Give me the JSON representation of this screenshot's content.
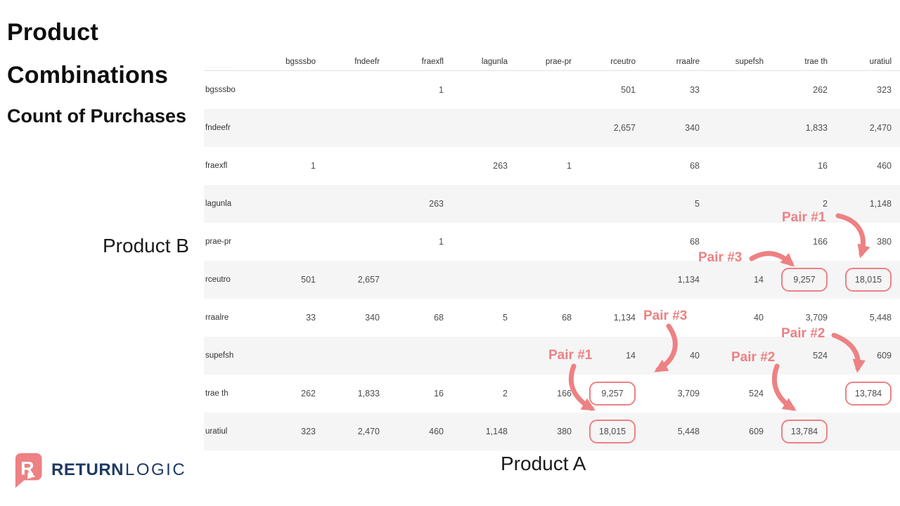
{
  "title": {
    "line1": "Product",
    "line2": "Combinations",
    "subtitle": "Count of Purchases"
  },
  "axes": {
    "row_axis_label": "Product B",
    "col_axis_label": "Product A"
  },
  "matrix": {
    "corner_placeholder": "..........",
    "columns": [
      "bgsssbo",
      "fndeefr",
      "fraexfl",
      "lagunla",
      "prae-pr",
      "rceutro",
      "rraalre",
      "supefsh",
      "trae th",
      "uratiul"
    ],
    "rows": [
      {
        "label": "bgsssbo",
        "values": [
          "",
          "",
          "1",
          "",
          "",
          "501",
          "33",
          "",
          "262",
          "323"
        ]
      },
      {
        "label": "fndeefr",
        "values": [
          "",
          "",
          "",
          "",
          "",
          "2,657",
          "340",
          "",
          "1,833",
          "2,470"
        ]
      },
      {
        "label": "fraexfl",
        "values": [
          "1",
          "",
          "",
          "263",
          "1",
          "",
          "68",
          "",
          "16",
          "460"
        ]
      },
      {
        "label": "lagunla",
        "values": [
          "",
          "",
          "263",
          "",
          "",
          "",
          "5",
          "",
          "2",
          "1,148"
        ]
      },
      {
        "label": "prae-pr",
        "values": [
          "",
          "",
          "1",
          "",
          "",
          "",
          "68",
          "",
          "166",
          "380"
        ]
      },
      {
        "label": "rceutro",
        "values": [
          "501",
          "2,657",
          "",
          "",
          "",
          "",
          "1,134",
          "14",
          "9,257",
          "18,015"
        ]
      },
      {
        "label": "rraalre",
        "values": [
          "33",
          "340",
          "68",
          "5",
          "68",
          "1,134",
          "",
          "40",
          "3,709",
          "5,448"
        ]
      },
      {
        "label": "supefsh",
        "values": [
          "",
          "",
          "",
          "",
          "",
          "14",
          "40",
          "",
          "524",
          "609"
        ]
      },
      {
        "label": "trae th",
        "values": [
          "262",
          "1,833",
          "16",
          "2",
          "166",
          "9,257",
          "3,709",
          "524",
          "",
          "13,784"
        ]
      },
      {
        "label": "uratiul",
        "values": [
          "323",
          "2,470",
          "460",
          "1,148",
          "380",
          "18,015",
          "5,448",
          "609",
          "13,784",
          ""
        ]
      }
    ]
  },
  "highlights": {
    "color": "#ED8183",
    "circled_cells": [
      {
        "row": "rceutro",
        "col": "trae th"
      },
      {
        "row": "rceutro",
        "col": "uratiul"
      },
      {
        "row": "trae th",
        "col": "rceutro"
      },
      {
        "row": "trae th",
        "col": "uratiul"
      },
      {
        "row": "uratiul",
        "col": "rceutro"
      },
      {
        "row": "uratiul",
        "col": "trae th"
      }
    ],
    "annotations": [
      {
        "id": "pair1-top",
        "label": "Pair #1"
      },
      {
        "id": "pair3-top",
        "label": "Pair #3"
      },
      {
        "id": "pair3-mid",
        "label": "Pair #3"
      },
      {
        "id": "pair1-mid",
        "label": "Pair #1"
      },
      {
        "id": "pair2-right",
        "label": "Pair #2"
      },
      {
        "id": "pair2-mid",
        "label": "Pair #2"
      }
    ]
  },
  "logo": {
    "brand_bold": "RETURN",
    "brand_light": "LOGIC",
    "icon_letter": "R",
    "icon_color": "#ED8183",
    "text_color": "#1F3A63"
  },
  "chart_data": {
    "type": "heatmap",
    "title": "Product Combinations",
    "subtitle": "Count of Purchases",
    "xlabel": "Product A",
    "ylabel": "Product B",
    "categories": [
      "bgsssbo",
      "fndeefr",
      "fraexfl",
      "lagunla",
      "prae-pr",
      "rceutro",
      "rraalre",
      "supefsh",
      "trae th",
      "uratiul"
    ],
    "series": [
      {
        "name": "bgsssbo",
        "values": [
          null,
          null,
          1,
          null,
          null,
          501,
          33,
          null,
          262,
          323
        ]
      },
      {
        "name": "fndeefr",
        "values": [
          null,
          null,
          null,
          null,
          null,
          2657,
          340,
          null,
          1833,
          2470
        ]
      },
      {
        "name": "fraexfl",
        "values": [
          1,
          null,
          null,
          263,
          1,
          null,
          68,
          null,
          16,
          460
        ]
      },
      {
        "name": "lagunla",
        "values": [
          null,
          null,
          263,
          null,
          null,
          null,
          5,
          null,
          2,
          1148
        ]
      },
      {
        "name": "prae-pr",
        "values": [
          null,
          null,
          1,
          null,
          null,
          null,
          68,
          null,
          166,
          380
        ]
      },
      {
        "name": "rceutro",
        "values": [
          501,
          2657,
          null,
          null,
          null,
          null,
          1134,
          14,
          9257,
          18015
        ]
      },
      {
        "name": "rraalre",
        "values": [
          33,
          340,
          68,
          5,
          68,
          1134,
          null,
          40,
          3709,
          5448
        ]
      },
      {
        "name": "supefsh",
        "values": [
          null,
          null,
          null,
          null,
          null,
          14,
          40,
          null,
          524,
          609
        ]
      },
      {
        "name": "trae th",
        "values": [
          262,
          1833,
          16,
          2,
          166,
          9257,
          3709,
          524,
          null,
          13784
        ]
      },
      {
        "name": "uratiul",
        "values": [
          323,
          2470,
          460,
          1148,
          380,
          18015,
          5448,
          609,
          13784,
          null
        ]
      }
    ],
    "annotated_pairs": [
      {
        "label": "Pair #1",
        "value": 18015,
        "products": [
          "rceutro",
          "uratiul"
        ]
      },
      {
        "label": "Pair #2",
        "value": 13784,
        "products": [
          "trae th",
          "uratiul"
        ]
      },
      {
        "label": "Pair #3",
        "value": 9257,
        "products": [
          "rceutro",
          "trae th"
        ]
      }
    ],
    "legend_position": "none",
    "grid": false
  }
}
